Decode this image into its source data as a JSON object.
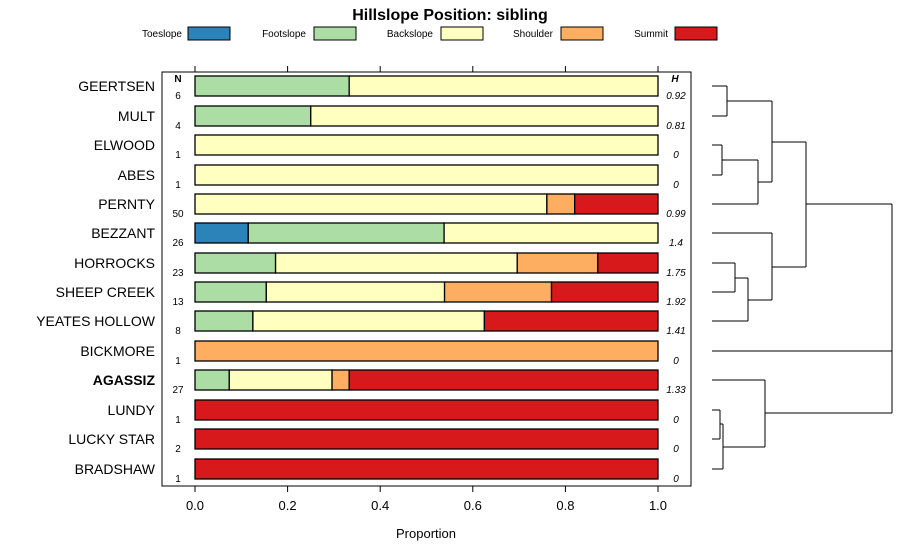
{
  "chart_data": {
    "type": "bar",
    "stacked": true,
    "orientation": "horizontal",
    "title": "Hillslope Position: sibling",
    "xlabel": "Proportion",
    "xlim": [
      0,
      1
    ],
    "x_ticks": [
      "0.0",
      "0.2",
      "0.4",
      "0.6",
      "0.8",
      "1.0"
    ],
    "n_header": "N",
    "h_header": "H",
    "legend_placement": "top",
    "series": [
      {
        "name": "Toeslope",
        "color": "#2b83ba"
      },
      {
        "name": "Footslope",
        "color": "#abdda4"
      },
      {
        "name": "Backslope",
        "color": "#ffffbf"
      },
      {
        "name": "Shoulder",
        "color": "#fdae61"
      },
      {
        "name": "Summit",
        "color": "#d7191c"
      }
    ],
    "rows": [
      {
        "label": "GEERTSEN",
        "n": "6",
        "h": "0.92",
        "values": [
          0,
          0.333,
          0.667,
          0,
          0
        ]
      },
      {
        "label": "MULT",
        "n": "4",
        "h": "0.81",
        "values": [
          0,
          0.25,
          0.75,
          0,
          0
        ]
      },
      {
        "label": "ELWOOD",
        "n": "1",
        "h": "0",
        "values": [
          0,
          0,
          1,
          0,
          0
        ]
      },
      {
        "label": "ABES",
        "n": "1",
        "h": "0",
        "values": [
          0,
          0,
          1,
          0,
          0
        ]
      },
      {
        "label": "PERNTY",
        "n": "50",
        "h": "0.99",
        "values": [
          0,
          0,
          0.76,
          0.06,
          0.18
        ]
      },
      {
        "label": "BEZZANT",
        "n": "26",
        "h": "1.4",
        "values": [
          0.115,
          0.423,
          0.462,
          0,
          0
        ]
      },
      {
        "label": "HORROCKS",
        "n": "23",
        "h": "1.75",
        "values": [
          0,
          0.174,
          0.522,
          0.174,
          0.13
        ]
      },
      {
        "label": "SHEEP CREEK",
        "n": "13",
        "h": "1.92",
        "values": [
          0,
          0.154,
          0.385,
          0.231,
          0.23
        ]
      },
      {
        "label": "YEATES HOLLOW",
        "n": "8",
        "h": "1.41",
        "values": [
          0,
          0.125,
          0.5,
          0,
          0.375
        ]
      },
      {
        "label": "BICKMORE",
        "n": "1",
        "h": "0",
        "values": [
          0,
          0,
          0,
          1,
          0
        ]
      },
      {
        "label": "AGASSIZ",
        "n": "27",
        "h": "1.33",
        "bold": true,
        "values": [
          0,
          0.074,
          0.222,
          0.037,
          0.667
        ]
      },
      {
        "label": "LUNDY",
        "n": "1",
        "h": "0",
        "values": [
          0,
          0,
          0,
          0,
          1
        ]
      },
      {
        "label": "LUCKY STAR",
        "n": "2",
        "h": "0",
        "values": [
          0,
          0,
          0,
          0,
          1
        ]
      },
      {
        "label": "BRADSHAW",
        "n": "1",
        "h": "0",
        "values": [
          0,
          0,
          0,
          0,
          1
        ]
      }
    ],
    "dendrogram": "hierarchical clustering of rows shown at right"
  }
}
